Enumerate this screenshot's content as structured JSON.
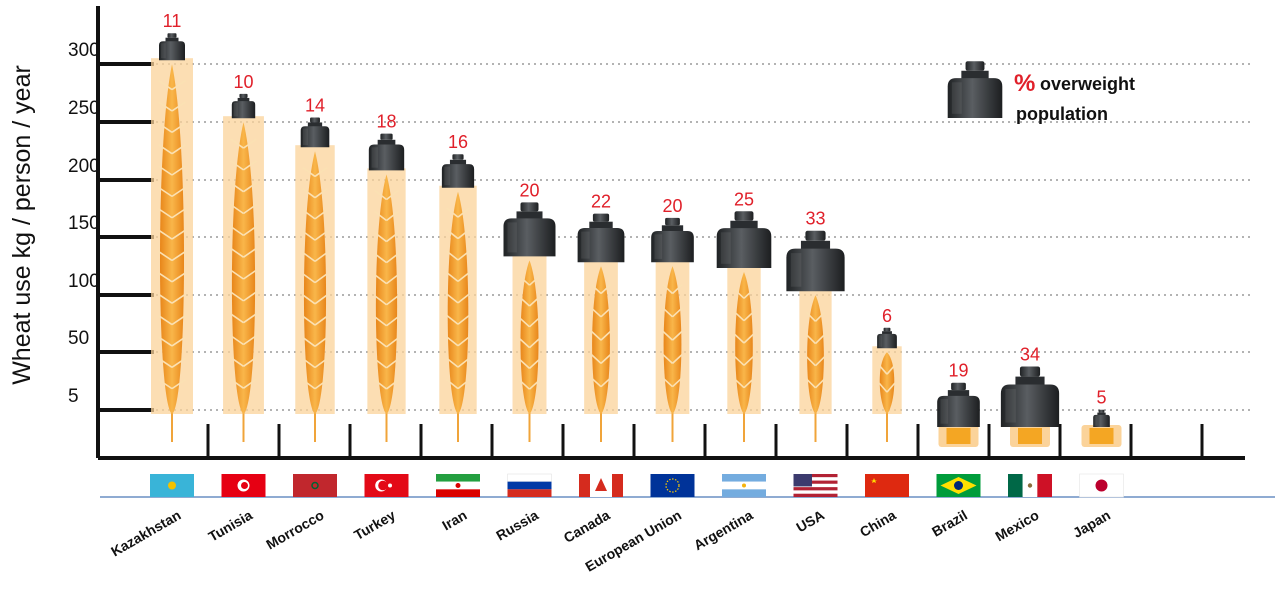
{
  "chart_data": {
    "type": "bar",
    "ylabel": "Wheat use kg / person / year",
    "y_ticks": [
      "5",
      "50",
      "100",
      "150",
      "200",
      "250",
      "300"
    ],
    "ylim": [
      5,
      300
    ],
    "grid": true,
    "categories": [
      "Kazakhstan",
      "Tunisia",
      "Morrocco",
      "Turkey",
      "Iran",
      "Russia",
      "Canada",
      "European Union",
      "Argentina",
      "USA",
      "China",
      "Brazil",
      "Mexico",
      "Japan"
    ],
    "series": [
      {
        "values": [
          305,
          255,
          230,
          210,
          195,
          135,
          130,
          130,
          125,
          105,
          55,
          5,
          5,
          5
        ]
      }
    ],
    "overweight_pct": [
      "11",
      "10",
      "14",
      "18",
      "16",
      "20",
      "22",
      "20",
      "25",
      "33",
      "6",
      "19",
      "34",
      "5"
    ],
    "legend": {
      "symbol": "%",
      "line1": "overweight",
      "line2": "population",
      "placement": "top-right"
    },
    "colors": {
      "wheat": "#f4a623",
      "wheat_light": "#fbd39a",
      "weight": "#3a3d40",
      "label": "#e0202a",
      "base_line": "#6a8fc4"
    },
    "flags": [
      "kz-flag-icon",
      "tn-flag-icon",
      "ma-flag-icon",
      "tr-flag-icon",
      "ir-flag-icon",
      "ru-flag-icon",
      "ca-flag-icon",
      "eu-flag-icon",
      "ar-flag-icon",
      "us-flag-icon",
      "cn-flag-icon",
      "br-flag-icon",
      "mx-flag-icon",
      "jp-flag-icon"
    ]
  }
}
